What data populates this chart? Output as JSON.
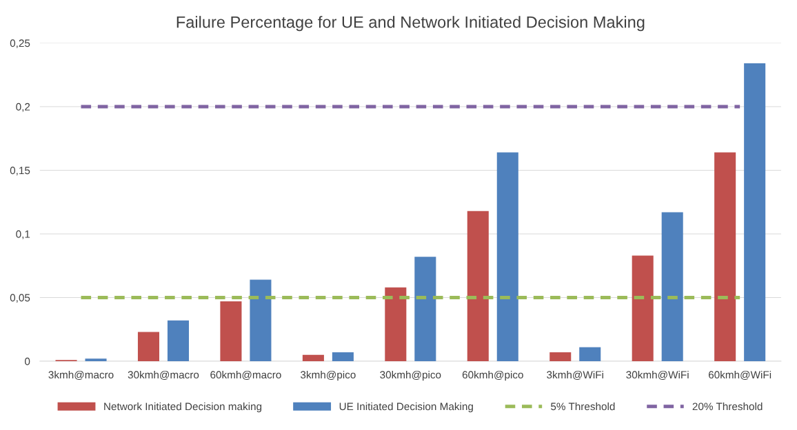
{
  "chart_data": {
    "type": "bar",
    "title": "Failure Percentage for UE and Network Initiated Decision Making",
    "categories": [
      "3kmh@macro",
      "30kmh@macro",
      "60kmh@macro",
      "3kmh@pico",
      "30kmh@pico",
      "60kmh@pico",
      "3kmh@WiFi",
      "30kmh@WiFi",
      "60kmh@WiFi"
    ],
    "series": [
      {
        "name": "Network Initiated Decision making",
        "color": "#c0504d",
        "values": [
          0.001,
          0.023,
          0.047,
          0.005,
          0.058,
          0.118,
          0.007,
          0.083,
          0.164
        ]
      },
      {
        "name": "UE Initiated Decision Making",
        "color": "#4f81bd",
        "values": [
          0.002,
          0.032,
          0.064,
          0.007,
          0.082,
          0.164,
          0.011,
          0.117,
          0.234
        ]
      }
    ],
    "ylim": [
      0,
      0.25
    ],
    "yticks": [
      0,
      {
        "value": 0.05,
        "label": "0,05"
      },
      {
        "value": 0.1,
        "label": "0,1"
      },
      {
        "value": 0.15,
        "label": "0,15"
      },
      {
        "value": 0.2,
        "label": "0,2"
      },
      {
        "value": 0.25,
        "label": "0,25"
      }
    ],
    "ref_lines": [
      {
        "axis": "y",
        "value": 0.05,
        "label": "5% Threshold",
        "color": "#9bbb59",
        "line_style": "dashed"
      },
      {
        "axis": "y",
        "value": 0.2,
        "label": "20% Threshold",
        "color": "#8064a2",
        "line_style": "dashed"
      }
    ],
    "grid": "y",
    "legend": "bottom"
  }
}
